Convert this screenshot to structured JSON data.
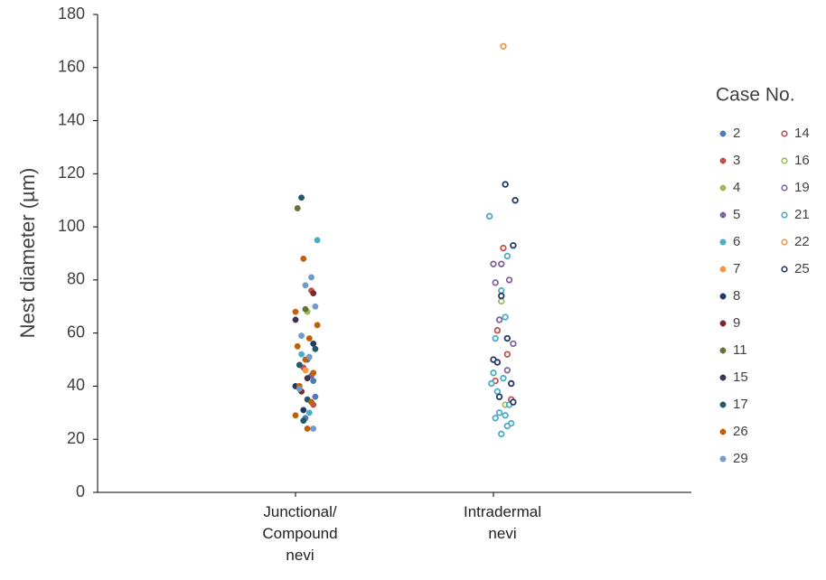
{
  "chart_data": {
    "type": "scatter",
    "y_label": "Nest diameter (µm)",
    "legend_title": "Case No.",
    "legend": "right",
    "xlim": [
      0,
      3
    ],
    "xticks": [
      {
        "value": 1,
        "label": "Junctional/ Compound nevi"
      },
      {
        "value": 2,
        "label": "Intradermal nevi"
      }
    ],
    "ylim": [
      0,
      180
    ],
    "yticks": [
      0,
      20,
      40,
      60,
      80,
      100,
      120,
      140,
      160,
      180
    ],
    "series": [
      {
        "name": "2",
        "color": "#4a7ebb",
        "marker": "filled",
        "x": [
          1.06,
          1.09,
          1.1,
          1.05
        ],
        "values": [
          50,
          42,
          36,
          28
        ]
      },
      {
        "name": "3",
        "color": "#c0504d",
        "marker": "filled",
        "x": [
          1.08,
          1.04,
          1.09
        ],
        "values": [
          76,
          47,
          33
        ]
      },
      {
        "name": "4",
        "color": "#9bbb59",
        "marker": "filled",
        "x": [
          1.06
        ],
        "values": [
          68
        ]
      },
      {
        "name": "5",
        "color": "#8064a2",
        "marker": "filled",
        "x": [
          1.08
        ],
        "values": [
          44
        ]
      },
      {
        "name": "6",
        "color": "#4bacc6",
        "marker": "filled",
        "x": [
          1.11,
          1.03,
          1.07
        ],
        "values": [
          95,
          52,
          30
        ]
      },
      {
        "name": "7",
        "color": "#f79646",
        "marker": "filled",
        "x": [
          1.05
        ],
        "values": [
          46
        ]
      },
      {
        "name": "8",
        "color": "#1f3864",
        "marker": "filled",
        "x": [
          1.0,
          1.04,
          1.09
        ],
        "values": [
          40,
          31,
          56
        ]
      },
      {
        "name": "9",
        "color": "#772c2a",
        "marker": "filled",
        "x": [
          1.09,
          1.03
        ],
        "values": [
          75,
          38
        ]
      },
      {
        "name": "11",
        "color": "#5f7530",
        "marker": "filled",
        "x": [
          1.01,
          1.05
        ],
        "values": [
          107,
          69
        ]
      },
      {
        "name": "15",
        "color": "#3f3151",
        "marker": "filled",
        "x": [
          1.0,
          1.06
        ],
        "values": [
          65,
          43
        ]
      },
      {
        "name": "17",
        "color": "#215968",
        "marker": "filled",
        "x": [
          1.03,
          1.1,
          1.02,
          1.06,
          1.04
        ],
        "values": [
          111,
          54,
          48,
          35,
          27
        ]
      },
      {
        "name": "26",
        "color": "#c0600a",
        "marker": "filled",
        "x": [
          1.04,
          1.0,
          1.11,
          1.07,
          1.01,
          1.05,
          1.09,
          1.02,
          1.08,
          1.0,
          1.06
        ],
        "values": [
          88,
          68,
          63,
          58,
          55,
          50,
          45,
          40,
          34,
          29,
          24
        ]
      },
      {
        "name": "29",
        "color": "#729aca",
        "marker": "filled",
        "x": [
          1.08,
          1.05,
          1.1,
          1.03,
          1.07,
          1.02,
          1.09
        ],
        "values": [
          81,
          78,
          70,
          59,
          51,
          39,
          24
        ]
      },
      {
        "name": "14",
        "color": "#c0504d",
        "marker": "open",
        "x": [
          2.05,
          2.02,
          2.07,
          2.01,
          2.09
        ],
        "values": [
          92,
          61,
          52,
          42,
          35
        ]
      },
      {
        "name": "16",
        "color": "#9bbb59",
        "marker": "open",
        "x": [
          2.04,
          2.06
        ],
        "values": [
          72,
          33
        ]
      },
      {
        "name": "19",
        "color": "#8064a2",
        "marker": "open",
        "x": [
          2.0,
          2.04,
          2.01,
          2.08,
          2.03,
          2.1,
          2.07
        ],
        "values": [
          86,
          86,
          79,
          80,
          65,
          56,
          46
        ]
      },
      {
        "name": "21",
        "color": "#4bacc6",
        "marker": "open",
        "x": [
          1.98,
          2.07,
          2.04,
          2.06,
          2.01,
          2.0,
          2.05,
          1.99,
          2.02,
          2.08,
          2.03,
          2.06,
          2.09,
          2.01,
          2.04,
          2.07
        ],
        "values": [
          104,
          89,
          76,
          66,
          58,
          45,
          43,
          41,
          38,
          33,
          30,
          29,
          26,
          28,
          22,
          25
        ]
      },
      {
        "name": "22",
        "color": "#f79646",
        "marker": "open",
        "x": [
          2.05
        ],
        "values": [
          168
        ]
      },
      {
        "name": "25",
        "color": "#1f3864",
        "marker": "open",
        "x": [
          2.06,
          2.11,
          2.1,
          2.04,
          2.07,
          2.0,
          2.02,
          2.09,
          2.03,
          2.1
        ],
        "values": [
          116,
          110,
          93,
          74,
          58,
          50,
          49,
          41,
          36,
          34
        ]
      }
    ]
  }
}
